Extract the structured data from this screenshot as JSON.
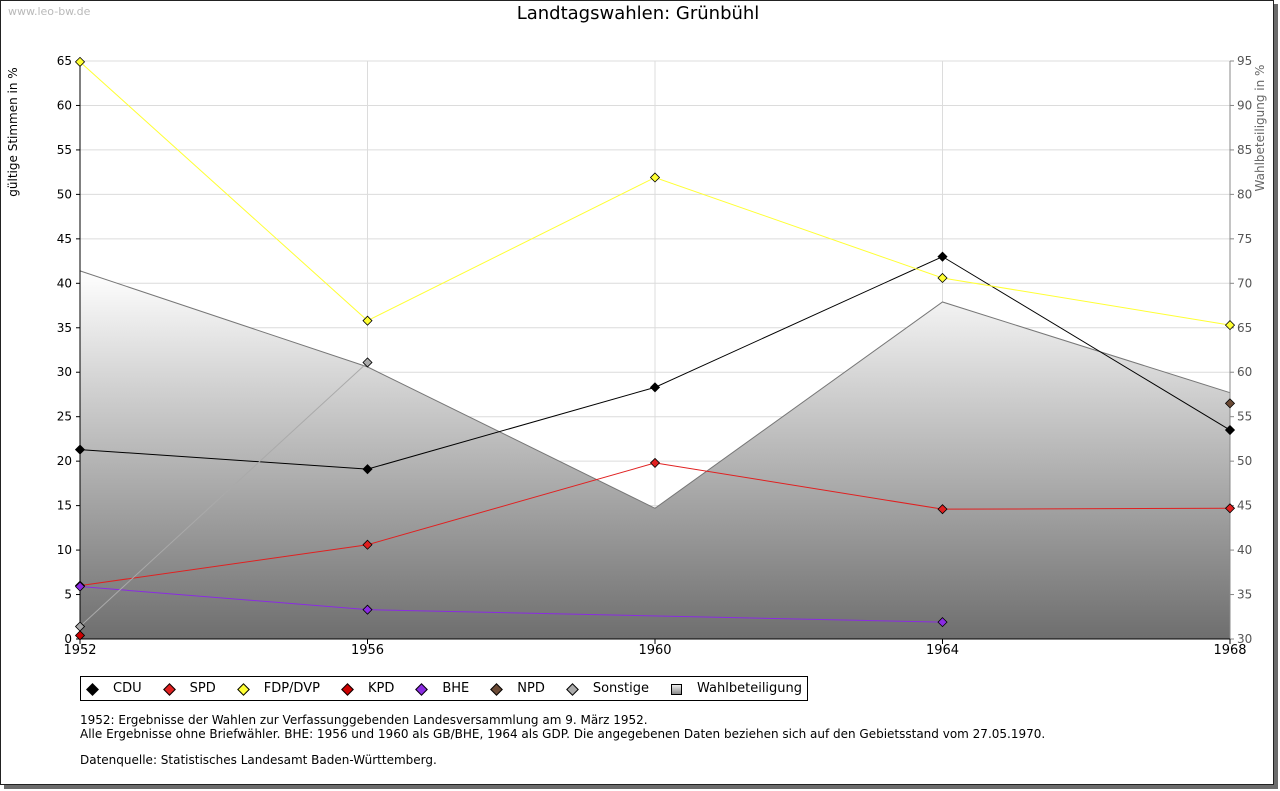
{
  "watermark": "www.leo-bw.de",
  "chart_data": {
    "type": "line",
    "title": "Landtagswahlen: Grünbühl",
    "ylabel": "gültige Stimmen in %",
    "ylabel_right": "Wahlbeteiligung in %",
    "ylim": [
      0,
      65
    ],
    "ylim_right": [
      30,
      95
    ],
    "yticks": [
      0,
      5,
      10,
      15,
      20,
      25,
      30,
      35,
      40,
      45,
      50,
      55,
      60,
      65
    ],
    "yticks_right": [
      30,
      35,
      40,
      45,
      50,
      55,
      60,
      65,
      70,
      75,
      80,
      85,
      90,
      95
    ],
    "x": [
      1952,
      1956,
      1960,
      1964,
      1968
    ],
    "xticks": [
      "1952",
      "1956",
      "1960",
      "1964",
      "1968"
    ],
    "grid": true,
    "series": [
      {
        "name": "CDU",
        "color": "#000000",
        "values": [
          21.3,
          19.1,
          28.3,
          43.0,
          23.5
        ]
      },
      {
        "name": "SPD",
        "color": "#e02020",
        "values": [
          6.0,
          10.6,
          19.8,
          14.6,
          14.7
        ]
      },
      {
        "name": "FDP/DVP",
        "color": "#ffff33",
        "values": [
          64.9,
          35.8,
          51.9,
          40.6,
          35.3
        ]
      },
      {
        "name": "KPD",
        "color": "#cc0000",
        "values": [
          0.4,
          null,
          null,
          null,
          null
        ]
      },
      {
        "name": "BHE",
        "color": "#8a2be2",
        "values": [
          5.9,
          3.3,
          null,
          1.9,
          null
        ]
      },
      {
        "name": "NPD",
        "color": "#6b4a35",
        "values": [
          null,
          null,
          null,
          null,
          26.5
        ]
      },
      {
        "name": "Sonstige",
        "color": "#aaaaaa",
        "values": [
          1.4,
          31.1,
          null,
          null,
          null
        ]
      }
    ],
    "turnout": {
      "name": "Wahlbeteiligung",
      "axis": "right",
      "values": [
        71.4,
        60.6,
        44.7,
        67.9,
        57.7
      ]
    }
  },
  "legend": {
    "items": [
      {
        "label": "CDU",
        "color": "#000000",
        "shape": "diamond"
      },
      {
        "label": "SPD",
        "color": "#e02020",
        "shape": "diamond"
      },
      {
        "label": "FDP/DVP",
        "color": "#ffff33",
        "shape": "diamond"
      },
      {
        "label": "KPD",
        "color": "#cc0000",
        "shape": "diamond"
      },
      {
        "label": "BHE",
        "color": "#8a2be2",
        "shape": "diamond"
      },
      {
        "label": "NPD",
        "color": "#6b4a35",
        "shape": "diamond"
      },
      {
        "label": "Sonstige",
        "color": "#aaaaaa",
        "shape": "diamond"
      },
      {
        "label": "Wahlbeteiligung",
        "color": "#999999",
        "shape": "square"
      }
    ]
  },
  "notes": {
    "line1": "1952: Ergebnisse der Wahlen zur Verfassunggebenden Landesversammlung am 9. März 1952.",
    "line2": "Alle Ergebnisse ohne Briefwähler. BHE: 1956 und 1960 als GB/BHE, 1964 als GDP. Die angegebenen Daten beziehen sich auf den Gebietsstand vom 27.05.1970.",
    "source": "Datenquelle: Statistisches Landesamt Baden-Württemberg."
  }
}
